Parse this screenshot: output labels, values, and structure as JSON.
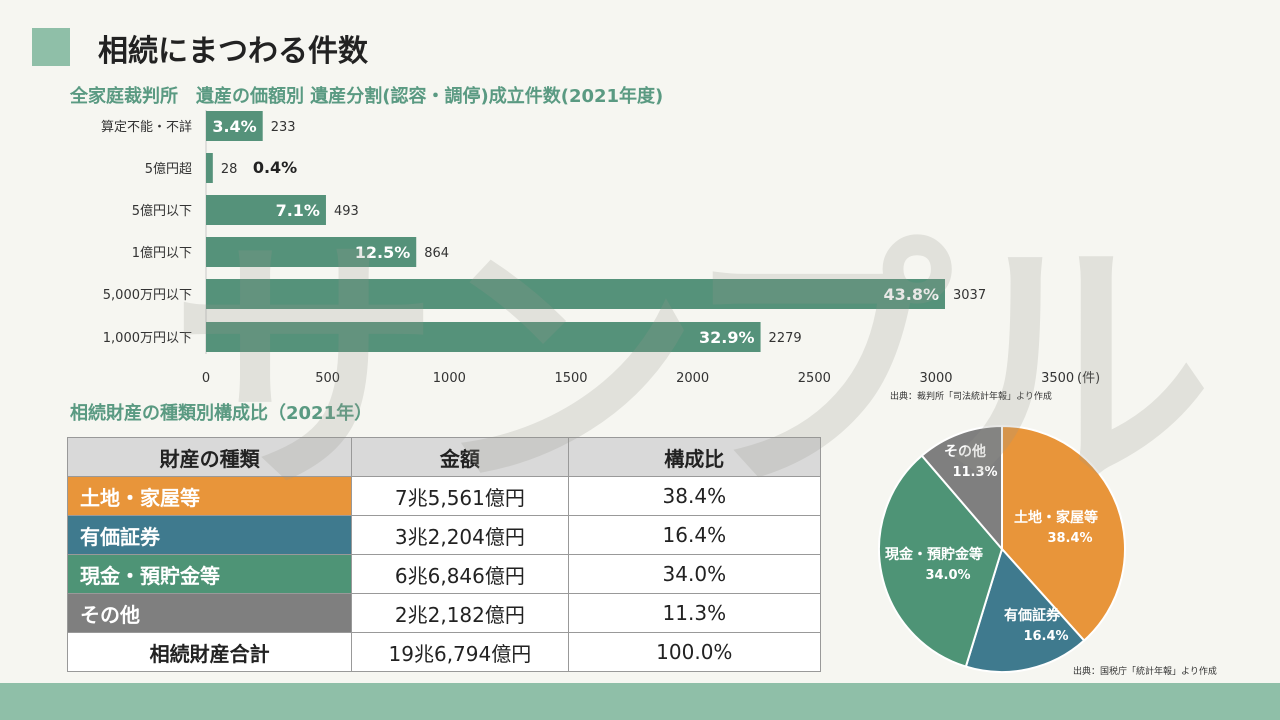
{
  "page": {
    "title": "相続にまつわる件数",
    "watermark": "サンプル"
  },
  "bar_section": {
    "title": "全家庭裁判所　遺産の価額別 遺産分割(認容・調停)成立件数(2021年度)",
    "unit": "(件)",
    "source": "出典：裁判所「司法統計年報」より作成"
  },
  "table_section": {
    "title": "相続財産の種類別構成比（2021年）",
    "headers": [
      "財産の種類",
      "金額",
      "構成比"
    ],
    "rows": [
      {
        "label": "土地・家屋等",
        "amount": "7兆5,561億円",
        "ratio": "38.4%",
        "color": "#e8953a"
      },
      {
        "label": "有価証券",
        "amount": "3兆2,204億円",
        "ratio": "16.4%",
        "color": "#3f7a8e"
      },
      {
        "label": "現金・預貯金等",
        "amount": "6兆6,846億円",
        "ratio": "34.0%",
        "color": "#4e9476"
      },
      {
        "label": "その他",
        "amount": "2兆2,182億円",
        "ratio": "11.3%",
        "color": "#7f7f7f"
      }
    ],
    "total": {
      "label": "相続財産合計",
      "amount": "19兆6,794億円",
      "ratio": "100.0%"
    },
    "source": "出典：国税庁「統計年報」より作成"
  },
  "chart_data": [
    {
      "type": "bar",
      "orientation": "horizontal",
      "title": "全家庭裁判所　遺産の価額別 遺産分割(認容・調停)成立件数(2021年度)",
      "categories": [
        "算定不能・不詳",
        "5億円超",
        "5億円以下",
        "1億円以下",
        "5,000万円以下",
        "1,000万円以下"
      ],
      "values": [
        233,
        28,
        493,
        864,
        3037,
        2279
      ],
      "percent_labels": [
        "3.4%",
        "0.4%",
        "7.1%",
        "12.5%",
        "43.8%",
        "32.9%"
      ],
      "xlim": [
        0,
        3500
      ],
      "xticks": [
        0,
        500,
        1000,
        1500,
        2000,
        2500,
        3000,
        3500
      ],
      "xlabel": "(件)",
      "color": "#55927a",
      "grid": false
    },
    {
      "type": "pie",
      "categories": [
        "土地・家屋等",
        "有価証券",
        "現金・預貯金等",
        "その他"
      ],
      "values": [
        38.4,
        16.4,
        34.0,
        11.3
      ],
      "labels": [
        "38.4%",
        "16.4%",
        "34.0%",
        "11.3%"
      ],
      "colors": [
        "#e8953a",
        "#3f7a8e",
        "#4e9476",
        "#7f7f7f"
      ],
      "start": "12 o'clock",
      "direction": "clockwise"
    }
  ]
}
